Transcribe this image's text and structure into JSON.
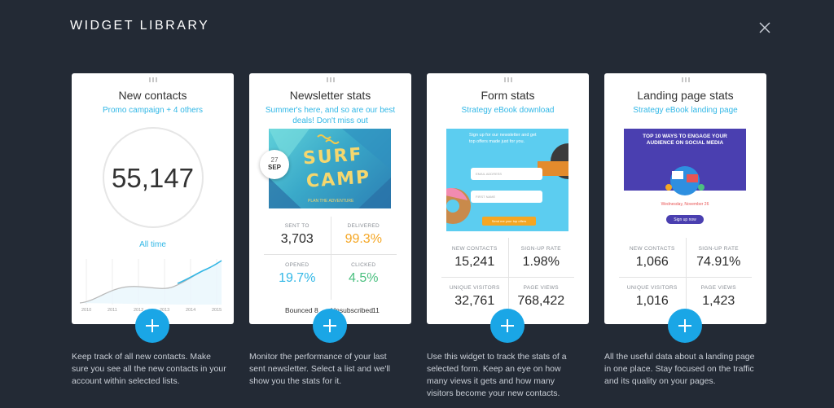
{
  "header": {
    "title": "WIDGET LIBRARY"
  },
  "colors": {
    "background": "#232a35",
    "accent": "#1aa6e6",
    "link": "#31b7e6",
    "orange": "#f5a623",
    "green": "#4cc080"
  },
  "cards": [
    {
      "title": "New contacts",
      "subtitle": "Promo campaign + 4 others",
      "big_number": "55,147",
      "period": "All time",
      "chart_years": [
        "2010",
        "2011",
        "2012",
        "2013",
        "2014",
        "2015"
      ],
      "description": "Keep track of all new contacts. Make sure you see all the new contacts in your account within selected lists."
    },
    {
      "title": "Newsletter stats",
      "subtitle": "Summer's here, and so are our best deals! Don't miss out",
      "image_text": {
        "line1": "SURF",
        "line2": "CAMP",
        "tagline": "PLAN THE ADVENTURE"
      },
      "date_day": "27",
      "date_month": "SEP",
      "stats": [
        {
          "label": "SENT TO",
          "value": "3,703",
          "color": "#2a2a2a"
        },
        {
          "label": "DELIVERED",
          "value": "99.3%",
          "color": "#f5a623"
        },
        {
          "label": "OPENED",
          "value": "19.7%",
          "color": "#31b7e6"
        },
        {
          "label": "CLICKED",
          "value": "4.5%",
          "color": "#4cc080"
        }
      ],
      "bounced_label": "Bounced",
      "bounced_value": "8",
      "unsub_label": "Unsubscribed",
      "unsub_value": "11",
      "description": "Monitor the performance of your last sent newsletter. Select a list and we'll show you the stats for it."
    },
    {
      "title": "Form stats",
      "subtitle": "Strategy eBook download",
      "form_preview": {
        "heading": "Sign up for our newsletter and get top offers made just for you.",
        "email_placeholder": "EMAIL ADDRESS",
        "name_placeholder": "FIRST NAME",
        "button": "Send me your top offers"
      },
      "stats": [
        {
          "label": "NEW CONTACTS",
          "value": "15,241"
        },
        {
          "label": "SIGN-UP RATE",
          "value": "1.98%"
        },
        {
          "label": "UNIQUE VISITORS",
          "value": "32,761"
        },
        {
          "label": "PAGE VIEWS",
          "value": "768,422"
        }
      ],
      "description": "Use this widget to track the stats of a selected form. Keep an eye on how many views it gets and how many visitors become your new contacts."
    },
    {
      "title": "Landing page stats",
      "subtitle": "Strategy eBook landing page",
      "landing_preview": {
        "heading": "TOP 10 WAYS TO ENGAGE YOUR AUDIENCE ON SOCIAL MEDIA",
        "date": "Wednesday, November 26",
        "button": "Sign up now"
      },
      "stats": [
        {
          "label": "NEW CONTACTS",
          "value": "1,066"
        },
        {
          "label": "SIGN-UP RATE",
          "value": "74.91%"
        },
        {
          "label": "UNIQUE VISITORS",
          "value": "1,016"
        },
        {
          "label": "PAGE VIEWS",
          "value": "1,423"
        }
      ],
      "description": "All the useful data about a landing page in one place. Stay focused on the traffic and its quality on your pages."
    }
  ]
}
